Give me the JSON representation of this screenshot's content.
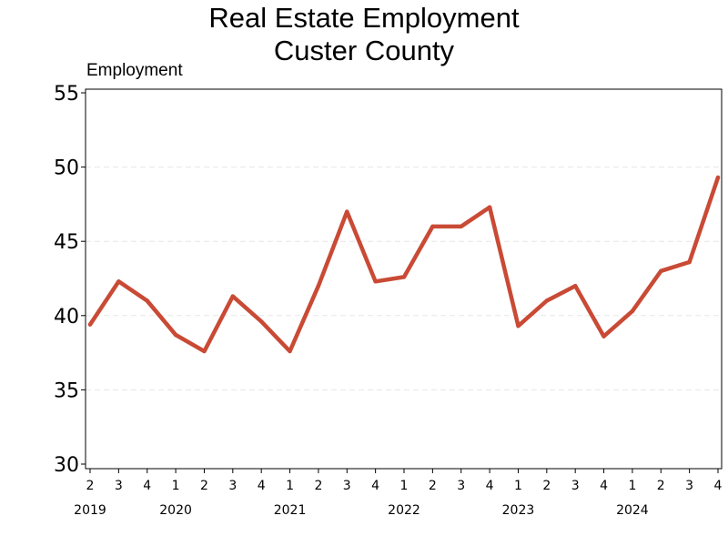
{
  "chart_data": {
    "type": "line",
    "title_line1": "Real Estate Employment",
    "title_line2": "Custer County",
    "ylabel": "Employment",
    "xlabel": "",
    "ylim": [
      30,
      55
    ],
    "yticks": [
      30,
      35,
      40,
      45,
      50,
      55
    ],
    "grid": true,
    "line_color": "#c94a35",
    "grid_color": "#e6e6e6",
    "quarters": [
      "2",
      "3",
      "4",
      "1",
      "2",
      "3",
      "4",
      "1",
      "2",
      "3",
      "4",
      "1",
      "2",
      "3",
      "4",
      "1",
      "2",
      "3",
      "4",
      "1",
      "2",
      "3",
      "4"
    ],
    "years": [
      {
        "label": "2019",
        "start_index": 0
      },
      {
        "label": "2020",
        "start_index": 3
      },
      {
        "label": "2021",
        "start_index": 7
      },
      {
        "label": "2022",
        "start_index": 11
      },
      {
        "label": "2023",
        "start_index": 15
      },
      {
        "label": "2024",
        "start_index": 19
      }
    ],
    "x": [
      "2019 Q2",
      "2019 Q3",
      "2019 Q4",
      "2020 Q1",
      "2020 Q2",
      "2020 Q3",
      "2020 Q4",
      "2021 Q1",
      "2021 Q2",
      "2021 Q3",
      "2021 Q4",
      "2022 Q1",
      "2022 Q2",
      "2022 Q3",
      "2022 Q4",
      "2023 Q1",
      "2023 Q2",
      "2023 Q3",
      "2023 Q4",
      "2024 Q1",
      "2024 Q2",
      "2024 Q3",
      "2024 Q4"
    ],
    "values": [
      39.4,
      42.3,
      41.0,
      38.7,
      37.6,
      41.3,
      39.6,
      37.6,
      42.0,
      47.0,
      42.3,
      42.6,
      46.0,
      46.0,
      47.3,
      39.3,
      41.0,
      42.0,
      38.6,
      40.3,
      43.0,
      43.6,
      49.3
    ]
  }
}
